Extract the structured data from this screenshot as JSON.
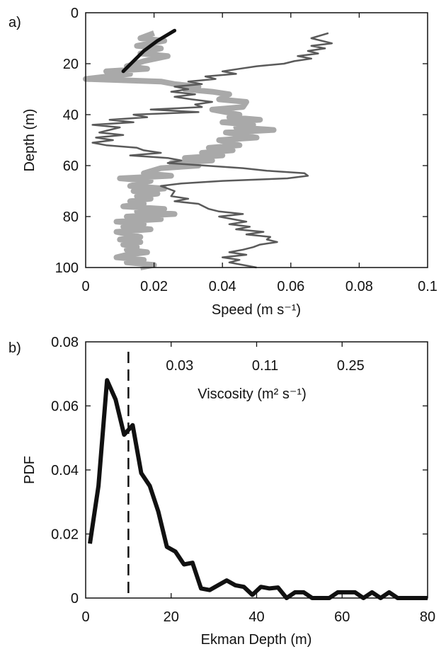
{
  "chart_data": [
    {
      "panel_label": "a)",
      "type": "line",
      "xlabel": "Speed (m s⁻¹)",
      "ylabel": "Depth (m)",
      "xlim": [
        0,
        0.1
      ],
      "ylim": [
        0,
        100
      ],
      "y_inverted": true,
      "x_ticks": [
        "0",
        "0.02",
        "0.04",
        "0.06",
        "0.08",
        "0.1"
      ],
      "y_ticks": [
        "0",
        "20",
        "40",
        "60",
        "80",
        "100"
      ],
      "grid": false,
      "series": [
        {
          "color": "#a9a9a9",
          "style": "thick",
          "points": [
            [
              0.02,
              8
            ],
            [
              0.016,
              10
            ],
            [
              0.023,
              11
            ],
            [
              0.015,
              13
            ],
            [
              0.022,
              14
            ],
            [
              0.016,
              16
            ],
            [
              0.024,
              17
            ],
            [
              0.017,
              19
            ],
            [
              0.012,
              21
            ],
            [
              0.018,
              22
            ],
            [
              0.006,
              23
            ],
            [
              0.013,
              24
            ],
            [
              0.0,
              26
            ],
            [
              0.022,
              27
            ],
            [
              0.026,
              28
            ],
            [
              0.033,
              29
            ],
            [
              0.029,
              30
            ],
            [
              0.037,
              31
            ],
            [
              0.042,
              32
            ],
            [
              0.039,
              34
            ],
            [
              0.047,
              35
            ],
            [
              0.046,
              37
            ],
            [
              0.037,
              38
            ],
            [
              0.045,
              40
            ],
            [
              0.042,
              41
            ],
            [
              0.051,
              42
            ],
            [
              0.04,
              43
            ],
            [
              0.049,
              44
            ],
            [
              0.044,
              45
            ],
            [
              0.055,
              46
            ],
            [
              0.041,
              47
            ],
            [
              0.05,
              49
            ],
            [
              0.039,
              50
            ],
            [
              0.045,
              52
            ],
            [
              0.036,
              53
            ],
            [
              0.043,
              54
            ],
            [
              0.034,
              55
            ],
            [
              0.04,
              56
            ],
            [
              0.029,
              57
            ],
            [
              0.037,
              58
            ],
            [
              0.025,
              59
            ],
            [
              0.033,
              60
            ],
            [
              0.022,
              61
            ],
            [
              0.017,
              63
            ],
            [
              0.025,
              64
            ],
            [
              0.01,
              65
            ],
            [
              0.019,
              66
            ],
            [
              0.013,
              68
            ],
            [
              0.023,
              69
            ],
            [
              0.014,
              70
            ],
            [
              0.021,
              71
            ],
            [
              0.015,
              72
            ],
            [
              0.019,
              73
            ],
            [
              0.013,
              74
            ],
            [
              0.017,
              75
            ],
            [
              0.011,
              76
            ],
            [
              0.023,
              77
            ],
            [
              0.015,
              78
            ],
            [
              0.026,
              79
            ],
            [
              0.012,
              80
            ],
            [
              0.022,
              81
            ],
            [
              0.009,
              82
            ],
            [
              0.017,
              83
            ],
            [
              0.011,
              84
            ],
            [
              0.019,
              85
            ],
            [
              0.009,
              86
            ],
            [
              0.016,
              88
            ],
            [
              0.01,
              89
            ],
            [
              0.016,
              90
            ],
            [
              0.011,
              91
            ],
            [
              0.015,
              92
            ],
            [
              0.012,
              93
            ],
            [
              0.018,
              94
            ],
            [
              0.012,
              95
            ],
            [
              0.009,
              96
            ],
            [
              0.017,
              97
            ],
            [
              0.012,
              98
            ],
            [
              0.02,
              99
            ],
            [
              0.016,
              100
            ]
          ]
        },
        {
          "color": "#5a5a5a",
          "style": "thin",
          "points": [
            [
              0.071,
              8
            ],
            [
              0.066,
              10
            ],
            [
              0.072,
              12
            ],
            [
              0.066,
              13
            ],
            [
              0.07,
              14
            ],
            [
              0.065,
              15
            ],
            [
              0.068,
              16
            ],
            [
              0.062,
              17
            ],
            [
              0.066,
              18
            ],
            [
              0.061,
              19
            ],
            [
              0.058,
              20
            ],
            [
              0.05,
              21
            ],
            [
              0.045,
              22
            ],
            [
              0.04,
              23
            ],
            [
              0.044,
              24
            ],
            [
              0.035,
              25
            ],
            [
              0.038,
              26
            ],
            [
              0.03,
              27
            ],
            [
              0.034,
              28
            ],
            [
              0.026,
              29
            ],
            [
              0.03,
              30
            ],
            [
              0.025,
              31
            ],
            [
              0.032,
              32
            ],
            [
              0.026,
              33
            ],
            [
              0.031,
              34
            ],
            [
              0.037,
              35
            ],
            [
              0.032,
              36
            ],
            [
              0.034,
              37
            ],
            [
              0.019,
              38
            ],
            [
              0.033,
              39
            ],
            [
              0.014,
              40
            ],
            [
              0.018,
              41
            ],
            [
              0.007,
              42
            ],
            [
              0.014,
              43
            ],
            [
              0.002,
              44
            ],
            [
              0.01,
              45
            ],
            [
              0.004,
              47
            ],
            [
              0.011,
              48
            ],
            [
              0.003,
              49
            ],
            [
              0.008,
              50
            ],
            [
              0.002,
              51
            ],
            [
              0.006,
              52
            ],
            [
              0.015,
              53
            ],
            [
              0.017,
              54
            ],
            [
              0.022,
              55
            ],
            [
              0.013,
              56
            ],
            [
              0.024,
              57
            ],
            [
              0.028,
              58
            ],
            [
              0.024,
              59
            ],
            [
              0.035,
              60
            ],
            [
              0.046,
              61
            ],
            [
              0.053,
              62
            ],
            [
              0.064,
              63
            ],
            [
              0.065,
              64
            ],
            [
              0.059,
              65
            ],
            [
              0.04,
              66
            ],
            [
              0.028,
              67
            ],
            [
              0.022,
              68
            ],
            [
              0.026,
              70
            ],
            [
              0.025,
              72
            ],
            [
              0.03,
              73
            ],
            [
              0.026,
              74
            ],
            [
              0.033,
              75
            ],
            [
              0.036,
              77
            ],
            [
              0.039,
              78
            ],
            [
              0.046,
              79
            ],
            [
              0.039,
              80
            ],
            [
              0.043,
              81
            ],
            [
              0.047,
              82
            ],
            [
              0.042,
              83
            ],
            [
              0.048,
              84
            ],
            [
              0.044,
              85
            ],
            [
              0.052,
              86
            ],
            [
              0.047,
              87
            ],
            [
              0.054,
              88
            ],
            [
              0.053,
              89
            ],
            [
              0.056,
              90
            ],
            [
              0.051,
              91
            ],
            [
              0.049,
              92
            ],
            [
              0.046,
              93
            ],
            [
              0.042,
              94
            ],
            [
              0.047,
              95
            ],
            [
              0.04,
              96
            ],
            [
              0.045,
              97
            ],
            [
              0.042,
              98
            ],
            [
              0.046,
              99
            ],
            [
              0.05,
              100
            ]
          ]
        },
        {
          "color": "#111111",
          "style": "thick-fit",
          "points": [
            [
              0.026,
              7
            ],
            [
              0.021,
              11
            ],
            [
              0.017,
              15
            ],
            [
              0.014,
              19
            ],
            [
              0.011,
              23
            ]
          ]
        }
      ]
    },
    {
      "panel_label": "b)",
      "type": "line",
      "xlabel": "Ekman Depth (m)",
      "ylabel": "PDF",
      "xlim": [
        0,
        80
      ],
      "ylim": [
        0,
        0.08
      ],
      "x_ticks": [
        "0",
        "20",
        "40",
        "60",
        "80"
      ],
      "y_ticks": [
        "0",
        "0.02",
        "0.04",
        "0.06",
        "0.08"
      ],
      "grid": false,
      "top_axis_label": "Viscosity (m² s⁻¹)",
      "top_axis_ticks": [
        {
          "label": "0.03",
          "x": 22
        },
        {
          "label": "0.11",
          "x": 42
        },
        {
          "label": "0.25",
          "x": 62
        }
      ],
      "vline_x": 10,
      "series": [
        {
          "color": "#111111",
          "points": [
            [
              1,
              0.017
            ],
            [
              3,
              0.035
            ],
            [
              5,
              0.068
            ],
            [
              7,
              0.062
            ],
            [
              9,
              0.051
            ],
            [
              11,
              0.054
            ],
            [
              13,
              0.039
            ],
            [
              15,
              0.035
            ],
            [
              17,
              0.027
            ],
            [
              19,
              0.016
            ],
            [
              21,
              0.0145
            ],
            [
              23,
              0.0105
            ],
            [
              25,
              0.011
            ],
            [
              27,
              0.003
            ],
            [
              29,
              0.0025
            ],
            [
              31,
              0.004
            ],
            [
              33,
              0.0055
            ],
            [
              35,
              0.004
            ],
            [
              37,
              0.0035
            ],
            [
              39,
              0.001
            ],
            [
              41,
              0.0035
            ],
            [
              43,
              0.003
            ],
            [
              45,
              0.0033
            ],
            [
              47,
              0.0
            ],
            [
              49,
              0.0018
            ],
            [
              51,
              0.0018
            ],
            [
              53,
              0.0
            ],
            [
              55,
              0.0
            ],
            [
              57,
              0.0
            ],
            [
              59,
              0.0018
            ],
            [
              61,
              0.0018
            ],
            [
              63,
              0.0018
            ],
            [
              65,
              0.0
            ],
            [
              67,
              0.0018
            ],
            [
              69,
              0.0
            ],
            [
              71,
              0.0018
            ],
            [
              73,
              0.0
            ],
            [
              80,
              0.0
            ]
          ]
        }
      ]
    }
  ]
}
